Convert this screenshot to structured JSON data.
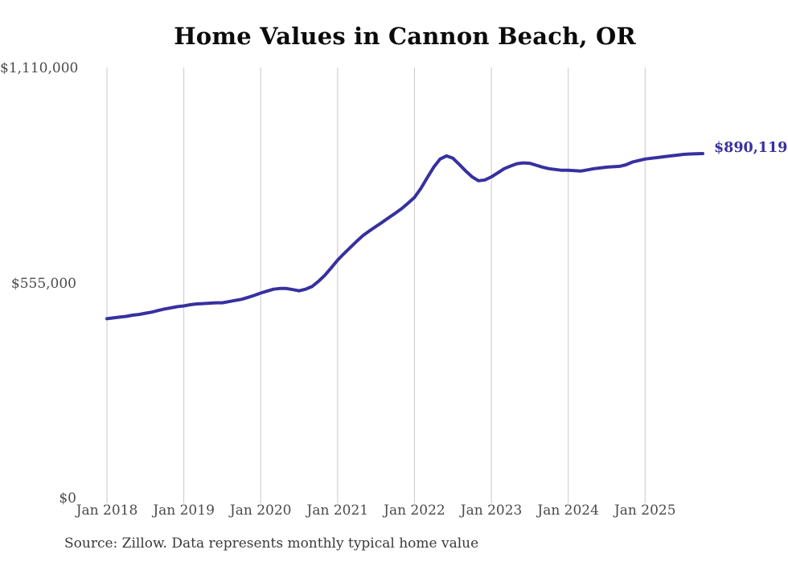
{
  "chart_data": {
    "type": "line",
    "title": "Home Values in Cannon Beach, OR",
    "source_note": "Source: Zillow. Data represents monthly typical home value",
    "end_label": "$890,119",
    "xlabel": "",
    "ylabel": "",
    "ylim": [
      0,
      1110000
    ],
    "grid": "vertical-only",
    "legend": "none",
    "colors": {
      "line": "#37309f",
      "end_label_text": "#37309f",
      "grid_line": "#c9c9c9",
      "axis_text": "#4a4a4a",
      "title_text": "#0b0b0b",
      "source_text": "#3a3a3a",
      "background": "#ffffff"
    },
    "y_ticks": [
      {
        "label": "$1,110,000",
        "value": 1110000
      },
      {
        "label": "$555,000",
        "value": 555000
      },
      {
        "label": "$0",
        "value": 0
      }
    ],
    "x_tick_labels": [
      "Jan 2018",
      "Jan 2019",
      "Jan 2020",
      "Jan 2021",
      "Jan 2022",
      "Jan 2023",
      "Jan 2024",
      "Jan 2025"
    ],
    "series": [
      {
        "name": "Typical home value",
        "x": [
          "2018-01",
          "2018-02",
          "2018-03",
          "2018-04",
          "2018-05",
          "2018-06",
          "2018-07",
          "2018-08",
          "2018-09",
          "2018-10",
          "2018-11",
          "2018-12",
          "2019-01",
          "2019-02",
          "2019-03",
          "2019-04",
          "2019-05",
          "2019-06",
          "2019-07",
          "2019-08",
          "2019-09",
          "2019-10",
          "2019-11",
          "2019-12",
          "2020-01",
          "2020-02",
          "2020-03",
          "2020-04",
          "2020-05",
          "2020-06",
          "2020-07",
          "2020-08",
          "2020-09",
          "2020-10",
          "2020-11",
          "2020-12",
          "2021-01",
          "2021-02",
          "2021-03",
          "2021-04",
          "2021-05",
          "2021-06",
          "2021-07",
          "2021-08",
          "2021-09",
          "2021-10",
          "2021-11",
          "2021-12",
          "2022-01",
          "2022-02",
          "2022-03",
          "2022-04",
          "2022-05",
          "2022-06",
          "2022-07",
          "2022-08",
          "2022-09",
          "2022-10",
          "2022-11",
          "2022-12",
          "2023-01",
          "2023-02",
          "2023-03",
          "2023-04",
          "2023-05",
          "2023-06",
          "2023-07",
          "2023-08",
          "2023-09",
          "2023-10",
          "2023-11",
          "2023-12",
          "2024-01",
          "2024-02",
          "2024-03",
          "2024-04",
          "2024-05",
          "2024-06",
          "2024-07",
          "2024-08",
          "2024-09",
          "2024-10",
          "2024-11",
          "2024-12",
          "2025-01",
          "2025-02",
          "2025-03",
          "2025-04",
          "2025-05",
          "2025-06",
          "2025-07",
          "2025-08",
          "2025-09",
          "2025-10"
        ],
        "values": [
          464000,
          466000,
          468000,
          470000,
          473000,
          475000,
          478000,
          481000,
          485000,
          489000,
          492000,
          495000,
          497000,
          500000,
          502000,
          503000,
          504000,
          505000,
          505000,
          508000,
          511000,
          514000,
          519000,
          524000,
          530000,
          535000,
          540000,
          542000,
          542000,
          539000,
          536000,
          540000,
          547000,
          560000,
          576000,
          595000,
          615000,
          632000,
          648000,
          664000,
          679000,
          691000,
          702000,
          713000,
          725000,
          736000,
          748000,
          762000,
          777000,
          800000,
          828000,
          855000,
          876000,
          884000,
          878000,
          862000,
          845000,
          830000,
          820000,
          822000,
          830000,
          840000,
          851000,
          858000,
          864000,
          866000,
          865000,
          860000,
          855000,
          851000,
          849000,
          847000,
          847000,
          846000,
          845000,
          848000,
          851000,
          853000,
          855000,
          856000,
          857000,
          861000,
          868000,
          872000,
          876000,
          878000,
          880000,
          882000,
          884000,
          886000,
          888000,
          889000,
          889500,
          890119
        ]
      }
    ]
  }
}
